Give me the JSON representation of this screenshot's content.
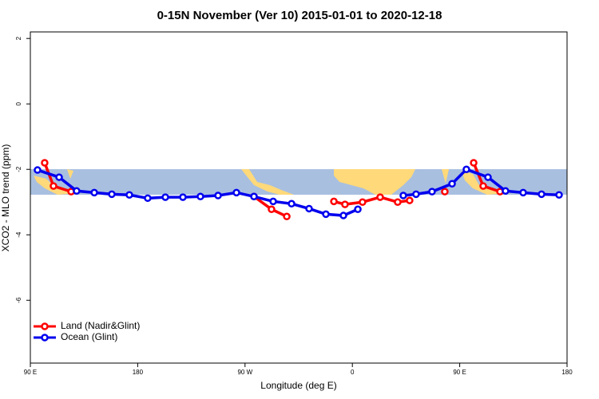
{
  "chart_data": {
    "type": "line",
    "title": "0-15N November (Ver 10)   2015-01-01 to 2020-12-18",
    "xlabel": "Longitude (deg E)",
    "ylabel": "XCO2 - MLO trend (ppm)",
    "xlim": [
      90,
      540
    ],
    "ylim": [
      -7.92,
      2.2
    ],
    "xticks": [
      {
        "value": 90,
        "label": "90 E"
      },
      180,
      {
        "value": 270,
        "label": "90 W"
      },
      {
        "value": 360,
        "label": "0"
      },
      {
        "value": 450,
        "label": "90 E"
      },
      {
        "value": 540,
        "label": "180"
      }
    ],
    "yticks": [
      -6,
      -4,
      -2,
      0,
      2
    ],
    "legend": "bottom-left",
    "series": [
      {
        "name": "Land (Nadir&Glint)",
        "color": "#ff0000",
        "x": [
          102,
          109.4,
          124.2,
          null,
          277.5,
          292.2,
          305,
          null,
          344.5,
          353.8,
          368.5,
          383.3,
          398,
          408,
          null,
          437.5,
          null,
          461.7,
          469.7,
          483.8
        ],
        "values": [
          -1.8,
          -2.51,
          -2.68,
          null,
          -2.83,
          -3.22,
          -3.44,
          null,
          -2.98,
          -3.07,
          -3.0,
          -2.85,
          -3.0,
          -2.95,
          null,
          -2.68,
          null,
          -1.8,
          -2.51,
          -2.68
        ]
      },
      {
        "name": "Ocean (Glint)",
        "color": "#0000ee",
        "x": [
          96,
          114.1,
          128.8,
          143.6,
          158.3,
          173,
          188.4,
          203.2,
          217.9,
          232.6,
          247.4,
          262.8,
          277.5,
          293.6,
          309,
          323.7,
          337.8,
          352.5,
          364.6,
          null,
          402.7,
          413.4,
          426.8,
          443.6,
          455.6,
          473.7,
          488.4,
          503.2,
          518.6,
          533.3
        ],
        "values": [
          -2.02,
          -2.24,
          -2.66,
          -2.71,
          -2.76,
          -2.78,
          -2.88,
          -2.85,
          -2.85,
          -2.83,
          -2.8,
          -2.71,
          -2.83,
          -2.98,
          -3.05,
          -3.2,
          -3.37,
          -3.41,
          -3.22,
          null,
          -2.8,
          -2.76,
          -2.68,
          -2.44,
          -2.0,
          -2.24,
          -2.66,
          -2.71,
          -2.76,
          -2.78
        ]
      }
    ]
  }
}
